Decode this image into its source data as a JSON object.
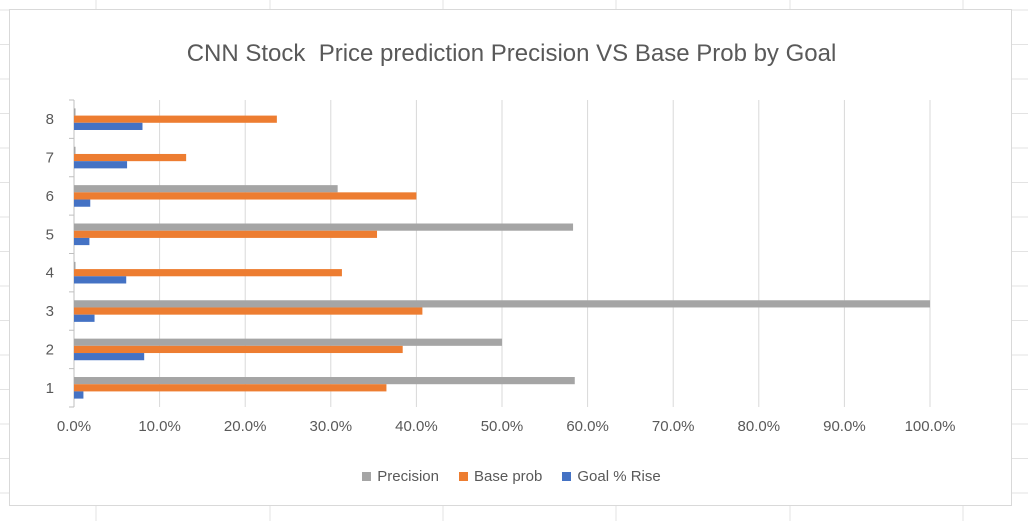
{
  "chart_data": {
    "type": "bar",
    "orientation": "horizontal",
    "title": "CNN Stock  Price prediction Precision VS Base Prob by Goal",
    "xlabel": "",
    "ylabel": "",
    "categories": [
      "1",
      "2",
      "3",
      "4",
      "5",
      "6",
      "7",
      "8"
    ],
    "x_ticks": [
      "0.0%",
      "10.0%",
      "20.0%",
      "30.0%",
      "40.0%",
      "50.0%",
      "60.0%",
      "70.0%",
      "80.0%",
      "90.0%",
      "100.0%"
    ],
    "xlim": [
      0,
      1
    ],
    "grid": true,
    "legend_position": "bottom",
    "series": [
      {
        "name": "Precision",
        "color": "#a5a5a5",
        "values": [
          0.585,
          0.5,
          1.0,
          0.0,
          0.583,
          0.308,
          0.0,
          0.0
        ]
      },
      {
        "name": "Base prob",
        "color": "#ed7d31",
        "values": [
          0.365,
          0.384,
          0.407,
          0.313,
          0.354,
          0.4,
          0.131,
          0.237
        ]
      },
      {
        "name": "Goal % Rise",
        "color": "#4472c4",
        "values": [
          0.011,
          0.082,
          0.024,
          0.061,
          0.018,
          0.019,
          0.062,
          0.08
        ]
      }
    ]
  }
}
